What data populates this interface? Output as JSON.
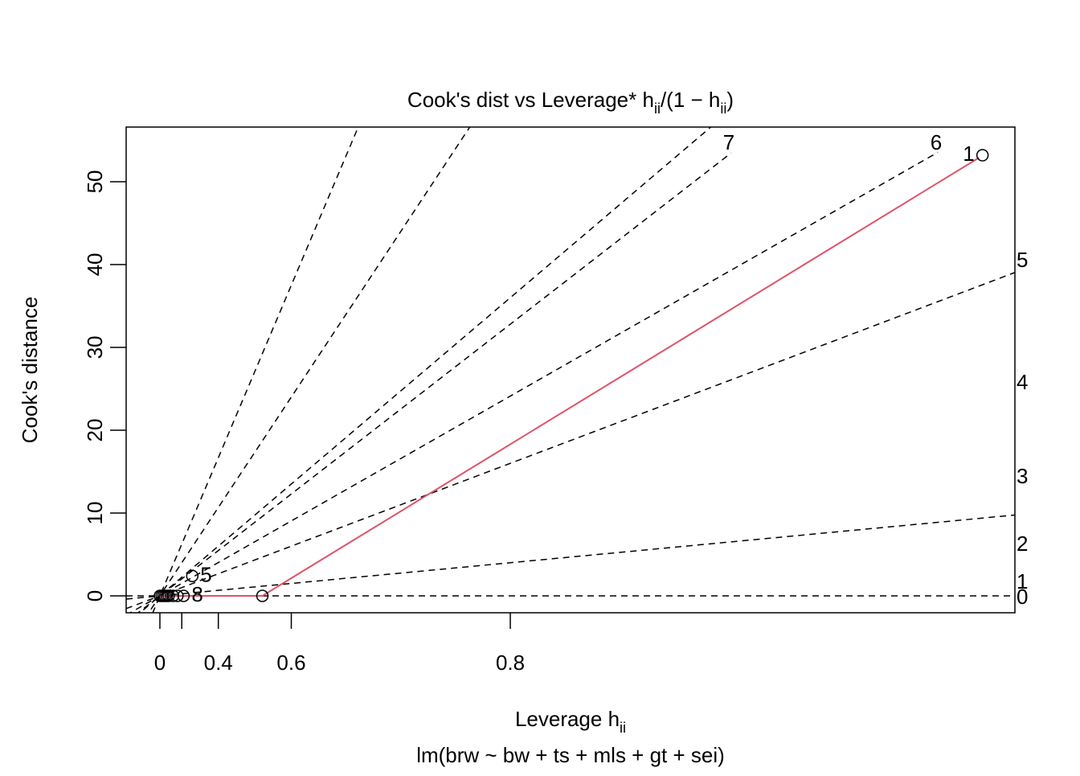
{
  "chart_data": {
    "type": "scatter",
    "title": "Cook's dist vs Leverage*",
    "title_formula": [
      {
        "text": "h",
        "sub": "ii"
      },
      {
        "text": "/(1 − h",
        "sub": "ii"
      },
      {
        "text": ")"
      }
    ],
    "x_label": "Leverage  h",
    "x_label_sub": "ii",
    "subtitle": "lm(brw ~ bw + ts + mls + gt + sei)",
    "y_label": "Cook's distance",
    "xlim": [
      -0.385,
      9.76
    ],
    "ylim": [
      -2.04,
      56.6
    ],
    "xticks": [
      0,
      {
        "value": 0.25,
        "label": null
      },
      {
        "value": 0.667,
        "label": "0.4"
      },
      {
        "value": 1.5,
        "label": "0.6"
      },
      {
        "value": 4,
        "label": "0.8"
      }
    ],
    "yticks": [
      0,
      10,
      20,
      30,
      40,
      50
    ],
    "points": {
      "color": "#000000",
      "x": [
        0,
        0.02,
        0.04,
        0.06,
        0.08,
        0.1,
        0.15,
        0.2,
        0.27,
        0.37,
        1.17,
        9.39
      ],
      "y": [
        0,
        0,
        0,
        0,
        0,
        0,
        0,
        0,
        0,
        2.4,
        0,
        53.2
      ],
      "labels": [
        null,
        null,
        null,
        null,
        null,
        null,
        null,
        null,
        "8",
        "5",
        null,
        "1"
      ]
    },
    "smooth": {
      "color": "#DF536B",
      "x": [
        0,
        0.1,
        0.3,
        1.17,
        9.35
      ],
      "y": [
        0,
        0,
        0,
        0,
        52.9
      ]
    },
    "contours": [
      {
        "slope": 0
      },
      {
        "slope": 1
      },
      {
        "slope": 4
      },
      {
        "slope": 6.03,
        "x_end": 8.88
      },
      {
        "slope": 8.2,
        "x_end": 6.52
      },
      {
        "slope": 9
      },
      {
        "slope": 16
      },
      {
        "slope": 25
      }
    ],
    "contour_labels_right": [
      "0",
      "1",
      "2",
      "3",
      "4",
      "5"
    ],
    "contour_labels_top": [
      "6",
      "7"
    ]
  }
}
